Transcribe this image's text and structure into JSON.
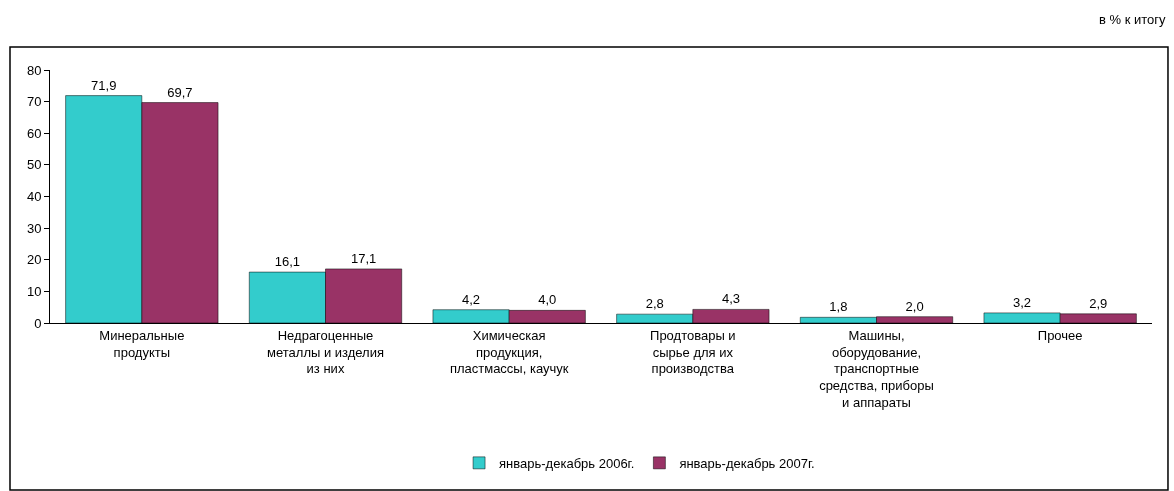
{
  "chart_data": {
    "type": "bar",
    "annotations": [
      "в % к итогу"
    ],
    "categories": [
      "Минеральные\nпродукты",
      "Недрагоценные\nметаллы и изделия\nиз них",
      "Химическая\nпродукция,\nпластмассы, каучук",
      "Продтовары и\nсырье для их\nпроизводства",
      "Машины,\nоборудование,\nтранспортные\nсредства, приборы\nи аппараты",
      "Прочее"
    ],
    "series": [
      {
        "name": "январь-декабрь 2006г.",
        "color": "#33cccc",
        "values": [
          71.9,
          16.1,
          4.2,
          2.8,
          1.8,
          3.2
        ],
        "value_labels": [
          "71,9",
          "16,1",
          "4,2",
          "2,8",
          "1,8",
          "3,2"
        ]
      },
      {
        "name": "январь-декабрь 2007г.",
        "color": "#993366",
        "values": [
          69.7,
          17.1,
          4.0,
          4.3,
          2.0,
          2.9
        ],
        "value_labels": [
          "69,7",
          "17,1",
          "4,0",
          "4,3",
          "2,0",
          "2,9"
        ]
      }
    ],
    "ylim": [
      0,
      80
    ],
    "yticks": [
      0,
      10,
      20,
      30,
      40,
      50,
      60,
      70,
      80
    ],
    "grid": false,
    "legend": "bottom"
  }
}
